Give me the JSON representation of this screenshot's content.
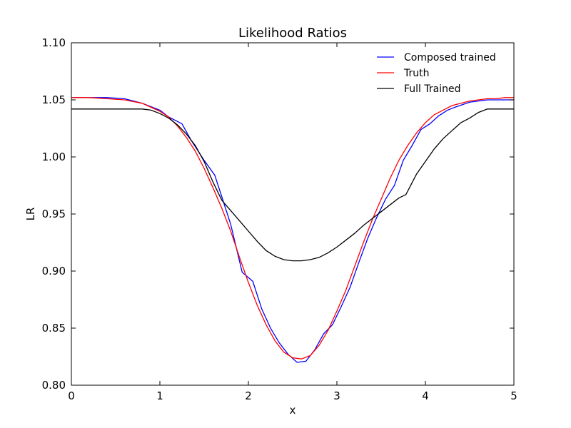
{
  "chart_data": {
    "type": "line",
    "title": "Likelihood Ratios",
    "xlabel": "x",
    "ylabel": "LR",
    "xlim": [
      0,
      5
    ],
    "ylim": [
      0.8,
      1.1
    ],
    "xticks": [
      "0",
      "1",
      "2",
      "3",
      "4",
      "5"
    ],
    "yticks": [
      "0.80",
      "0.85",
      "0.90",
      "0.95",
      "1.00",
      "1.05",
      "1.10"
    ],
    "xtick_values": [
      0,
      1,
      2,
      3,
      4,
      5
    ],
    "ytick_values": [
      0.8,
      0.85,
      0.9,
      0.95,
      1.0,
      1.05,
      1.1
    ],
    "grid": false,
    "legend_position": "top-right",
    "series": [
      {
        "name": "Composed trained",
        "color": "#0000ff",
        "x": [
          0,
          0.2,
          0.4,
          0.6,
          0.8,
          1.0,
          1.1,
          1.25,
          1.35,
          1.5,
          1.62,
          1.7,
          1.8,
          1.93,
          2.05,
          2.15,
          2.25,
          2.35,
          2.45,
          2.55,
          2.65,
          2.75,
          2.85,
          2.95,
          3.05,
          3.15,
          3.25,
          3.35,
          3.45,
          3.55,
          3.65,
          3.75,
          3.85,
          3.95,
          4.05,
          4.15,
          4.25,
          4.35,
          4.5,
          4.7,
          4.85,
          5.0
        ],
        "y": [
          1.052,
          1.052,
          1.052,
          1.051,
          1.047,
          1.041,
          1.035,
          1.029,
          1.015,
          0.997,
          0.984,
          0.965,
          0.941,
          0.899,
          0.891,
          0.867,
          0.85,
          0.837,
          0.827,
          0.82,
          0.821,
          0.831,
          0.845,
          0.853,
          0.869,
          0.886,
          0.908,
          0.929,
          0.947,
          0.963,
          0.975,
          0.997,
          1.01,
          1.024,
          1.029,
          1.036,
          1.041,
          1.044,
          1.048,
          1.05,
          1.05,
          1.05
        ]
      },
      {
        "name": "Truth",
        "color": "#ff0000",
        "x": [
          0,
          0.2,
          0.4,
          0.6,
          0.8,
          1.0,
          1.1,
          1.2,
          1.3,
          1.4,
          1.5,
          1.6,
          1.7,
          1.8,
          1.9,
          2.0,
          2.1,
          2.2,
          2.3,
          2.4,
          2.5,
          2.6,
          2.7,
          2.8,
          2.9,
          3.0,
          3.1,
          3.2,
          3.3,
          3.4,
          3.5,
          3.6,
          3.7,
          3.8,
          3.9,
          4.0,
          4.1,
          4.2,
          4.3,
          4.4,
          4.5,
          4.6,
          4.7,
          4.8,
          4.9,
          5.0
        ],
        "y": [
          1.052,
          1.052,
          1.051,
          1.05,
          1.047,
          1.04,
          1.035,
          1.027,
          1.017,
          1.005,
          0.99,
          0.973,
          0.955,
          0.935,
          0.912,
          0.89,
          0.87,
          0.853,
          0.839,
          0.829,
          0.824,
          0.823,
          0.826,
          0.835,
          0.848,
          0.865,
          0.883,
          0.904,
          0.925,
          0.945,
          0.963,
          0.981,
          0.997,
          1.01,
          1.021,
          1.03,
          1.037,
          1.041,
          1.045,
          1.047,
          1.049,
          1.05,
          1.051,
          1.051,
          1.052,
          1.052
        ]
      },
      {
        "name": "Full Trained",
        "color": "#000000",
        "x": [
          0,
          0.2,
          0.4,
          0.6,
          0.8,
          0.9,
          1.0,
          1.1,
          1.2,
          1.3,
          1.4,
          1.5,
          1.6,
          1.7,
          1.8,
          1.9,
          2.0,
          2.1,
          2.2,
          2.3,
          2.4,
          2.5,
          2.6,
          2.7,
          2.8,
          2.9,
          3.0,
          3.1,
          3.2,
          3.3,
          3.4,
          3.5,
          3.6,
          3.7,
          3.78,
          3.9,
          4.0,
          4.1,
          4.2,
          4.3,
          4.4,
          4.5,
          4.6,
          4.7,
          4.8,
          4.9,
          5.0
        ],
        "y": [
          1.042,
          1.042,
          1.042,
          1.042,
          1.042,
          1.041,
          1.038,
          1.034,
          1.028,
          1.02,
          1.01,
          0.996,
          0.978,
          0.962,
          0.953,
          0.944,
          0.935,
          0.926,
          0.918,
          0.913,
          0.91,
          0.909,
          0.909,
          0.91,
          0.912,
          0.916,
          0.921,
          0.927,
          0.933,
          0.94,
          0.946,
          0.952,
          0.958,
          0.964,
          0.967,
          0.985,
          0.996,
          1.007,
          1.016,
          1.023,
          1.03,
          1.034,
          1.039,
          1.042,
          1.042,
          1.042,
          1.042
        ]
      }
    ]
  }
}
